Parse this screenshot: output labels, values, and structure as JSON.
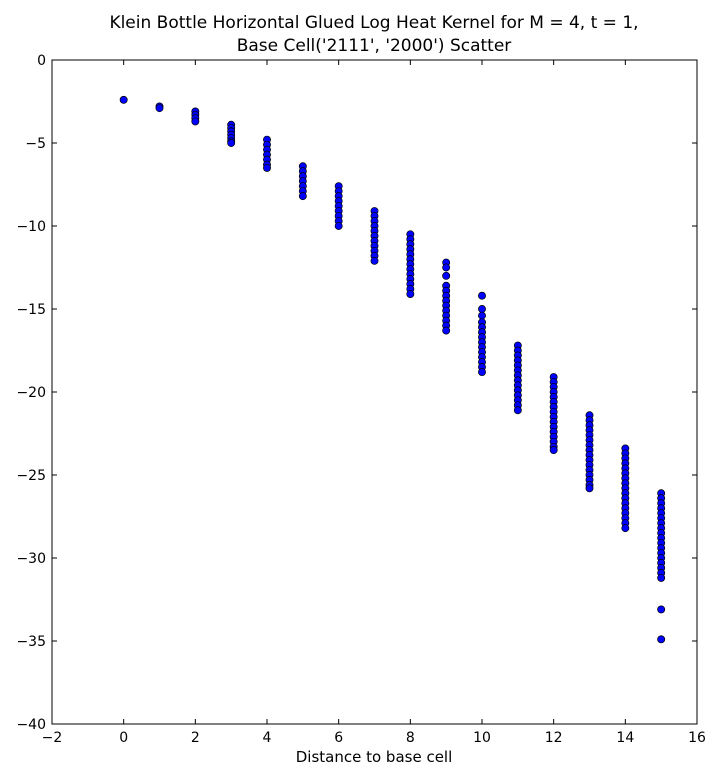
{
  "chart_data": {
    "type": "scatter",
    "title_lines": [
      "Klein Bottle Horizontal Glued Log Heat Kernel for M = 4, t = 1,",
      "Base Cell('2111', '2000') Scatter"
    ],
    "xlabel": "Distance to base cell",
    "ylabel": "",
    "xlim": [
      -2,
      16
    ],
    "ylim": [
      -40,
      0
    ],
    "x_ticks": [
      -2,
      0,
      2,
      4,
      6,
      8,
      10,
      12,
      14,
      16
    ],
    "y_ticks": [
      0,
      -5,
      -10,
      -15,
      -20,
      -25,
      -30,
      -35,
      -40
    ],
    "grid": false,
    "legend": "none",
    "marker_color": "#0000ff",
    "marker_edge_color": "#000000",
    "series": [
      {
        "points": [
          [
            0,
            -2.4
          ],
          [
            1,
            -2.8
          ],
          [
            1,
            -2.9
          ],
          [
            2,
            -3.1
          ],
          [
            2,
            -3.3
          ],
          [
            2,
            -3.5
          ],
          [
            2,
            -3.7
          ],
          [
            3,
            -3.9
          ],
          [
            3,
            -4.1
          ],
          [
            3,
            -4.3
          ],
          [
            3,
            -4.5
          ],
          [
            3,
            -4.7
          ],
          [
            3,
            -4.9
          ],
          [
            3,
            -5.0
          ],
          [
            4,
            -4.8
          ],
          [
            4,
            -5.1
          ],
          [
            4,
            -5.4
          ],
          [
            4,
            -5.7
          ],
          [
            4,
            -6.0
          ],
          [
            4,
            -6.3
          ],
          [
            4,
            -6.5
          ],
          [
            5,
            -6.4
          ],
          [
            5,
            -6.7
          ],
          [
            5,
            -7.0
          ],
          [
            5,
            -7.3
          ],
          [
            5,
            -7.6
          ],
          [
            5,
            -7.9
          ],
          [
            5,
            -8.2
          ],
          [
            6,
            -7.6
          ],
          [
            6,
            -7.9
          ],
          [
            6,
            -8.2
          ],
          [
            6,
            -8.5
          ],
          [
            6,
            -8.8
          ],
          [
            6,
            -9.1
          ],
          [
            6,
            -9.4
          ],
          [
            6,
            -9.7
          ],
          [
            6,
            -10.0
          ],
          [
            7,
            -9.1
          ],
          [
            7,
            -9.4
          ],
          [
            7,
            -9.7
          ],
          [
            7,
            -10.0
          ],
          [
            7,
            -10.3
          ],
          [
            7,
            -10.6
          ],
          [
            7,
            -10.9
          ],
          [
            7,
            -11.2
          ],
          [
            7,
            -11.5
          ],
          [
            7,
            -11.8
          ],
          [
            7,
            -12.1
          ],
          [
            8,
            -10.5
          ],
          [
            8,
            -10.8
          ],
          [
            8,
            -11.1
          ],
          [
            8,
            -11.4
          ],
          [
            8,
            -11.7
          ],
          [
            8,
            -12.0
          ],
          [
            8,
            -12.3
          ],
          [
            8,
            -12.6
          ],
          [
            8,
            -12.9
          ],
          [
            8,
            -13.2
          ],
          [
            8,
            -13.5
          ],
          [
            8,
            -13.8
          ],
          [
            8,
            -14.1
          ],
          [
            9,
            -12.2
          ],
          [
            9,
            -12.5
          ],
          [
            9,
            -13.0
          ],
          [
            9,
            -13.6
          ],
          [
            9,
            -13.9
          ],
          [
            9,
            -14.2
          ],
          [
            9,
            -14.5
          ],
          [
            9,
            -14.8
          ],
          [
            9,
            -15.1
          ],
          [
            9,
            -15.4
          ],
          [
            9,
            -15.7
          ],
          [
            9,
            -16.0
          ],
          [
            9,
            -16.3
          ],
          [
            10,
            -14.2
          ],
          [
            10,
            -15.0
          ],
          [
            10,
            -15.4
          ],
          [
            10,
            -15.8
          ],
          [
            10,
            -16.1
          ],
          [
            10,
            -16.4
          ],
          [
            10,
            -16.7
          ],
          [
            10,
            -17.0
          ],
          [
            10,
            -17.3
          ],
          [
            10,
            -17.6
          ],
          [
            10,
            -17.9
          ],
          [
            10,
            -18.2
          ],
          [
            10,
            -18.5
          ],
          [
            10,
            -18.8
          ],
          [
            11,
            -17.2
          ],
          [
            11,
            -17.5
          ],
          [
            11,
            -17.8
          ],
          [
            11,
            -18.1
          ],
          [
            11,
            -18.4
          ],
          [
            11,
            -18.7
          ],
          [
            11,
            -19.0
          ],
          [
            11,
            -19.3
          ],
          [
            11,
            -19.6
          ],
          [
            11,
            -19.9
          ],
          [
            11,
            -20.2
          ],
          [
            11,
            -20.5
          ],
          [
            11,
            -20.8
          ],
          [
            11,
            -21.1
          ],
          [
            12,
            -19.1
          ],
          [
            12,
            -19.4
          ],
          [
            12,
            -19.7
          ],
          [
            12,
            -20.0
          ],
          [
            12,
            -20.3
          ],
          [
            12,
            -20.6
          ],
          [
            12,
            -20.9
          ],
          [
            12,
            -21.2
          ],
          [
            12,
            -21.5
          ],
          [
            12,
            -21.8
          ],
          [
            12,
            -22.1
          ],
          [
            12,
            -22.4
          ],
          [
            12,
            -22.7
          ],
          [
            12,
            -23.0
          ],
          [
            12,
            -23.3
          ],
          [
            12,
            -23.5
          ],
          [
            13,
            -21.4
          ],
          [
            13,
            -21.7
          ],
          [
            13,
            -22.0
          ],
          [
            13,
            -22.3
          ],
          [
            13,
            -22.6
          ],
          [
            13,
            -22.9
          ],
          [
            13,
            -23.2
          ],
          [
            13,
            -23.5
          ],
          [
            13,
            -23.8
          ],
          [
            13,
            -24.1
          ],
          [
            13,
            -24.4
          ],
          [
            13,
            -24.7
          ],
          [
            13,
            -25.0
          ],
          [
            13,
            -25.3
          ],
          [
            13,
            -25.6
          ],
          [
            13,
            -25.8
          ],
          [
            14,
            -23.4
          ],
          [
            14,
            -23.7
          ],
          [
            14,
            -24.0
          ],
          [
            14,
            -24.3
          ],
          [
            14,
            -24.6
          ],
          [
            14,
            -24.9
          ],
          [
            14,
            -25.2
          ],
          [
            14,
            -25.5
          ],
          [
            14,
            -25.8
          ],
          [
            14,
            -26.1
          ],
          [
            14,
            -26.4
          ],
          [
            14,
            -26.7
          ],
          [
            14,
            -27.0
          ],
          [
            14,
            -27.3
          ],
          [
            14,
            -27.6
          ],
          [
            14,
            -27.9
          ],
          [
            14,
            -28.2
          ],
          [
            15,
            -26.1
          ],
          [
            15,
            -26.4
          ],
          [
            15,
            -26.7
          ],
          [
            15,
            -27.0
          ],
          [
            15,
            -27.3
          ],
          [
            15,
            -27.6
          ],
          [
            15,
            -27.9
          ],
          [
            15,
            -28.2
          ],
          [
            15,
            -28.5
          ],
          [
            15,
            -28.8
          ],
          [
            15,
            -29.1
          ],
          [
            15,
            -29.4
          ],
          [
            15,
            -29.7
          ],
          [
            15,
            -30.0
          ],
          [
            15,
            -30.3
          ],
          [
            15,
            -30.6
          ],
          [
            15,
            -30.9
          ],
          [
            15,
            -31.2
          ],
          [
            15,
            -33.1
          ],
          [
            15,
            -34.9
          ]
        ]
      }
    ]
  }
}
